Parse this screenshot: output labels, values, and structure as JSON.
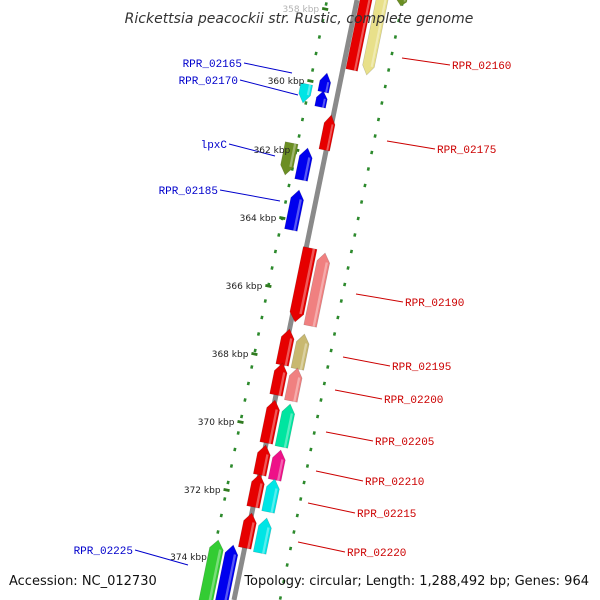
{
  "title": "Rickettsia peacockii str. Rustic, complete genome",
  "footer": {
    "accession": "Accession: NC_012730",
    "summary": "Topology: circular; Length: 1,288,492 bp; Genes: 964"
  },
  "colors": {
    "backbone": "#8a8a8a",
    "dots": "#2d8a2d",
    "left_label": "#0000cc",
    "right_label": "#cc0000"
  },
  "kbp_labels": [
    {
      "label": "358 kbp"
    },
    {
      "label": "360 kbp"
    },
    {
      "label": "362 kbp"
    },
    {
      "label": "364 kbp"
    },
    {
      "label": "366 kbp"
    },
    {
      "label": "368 kbp"
    },
    {
      "label": "370 kbp"
    },
    {
      "label": "372 kbp"
    },
    {
      "label": "374 kbp"
    }
  ],
  "left_genes": [
    {
      "name": "RPR_02165"
    },
    {
      "name": "RPR_02170"
    },
    {
      "name": "lpxC"
    },
    {
      "name": "RPR_02185"
    },
    {
      "name": "RPR_02225"
    }
  ],
  "right_genes": [
    {
      "name": "RPR_02160"
    },
    {
      "name": "RPR_02175"
    },
    {
      "name": "RPR_02190"
    },
    {
      "name": "RPR_02195"
    },
    {
      "name": "RPR_02200"
    },
    {
      "name": "RPR_02205"
    },
    {
      "name": "RPR_02210"
    },
    {
      "name": "RPR_02215"
    },
    {
      "name": "RPR_02220"
    }
  ]
}
